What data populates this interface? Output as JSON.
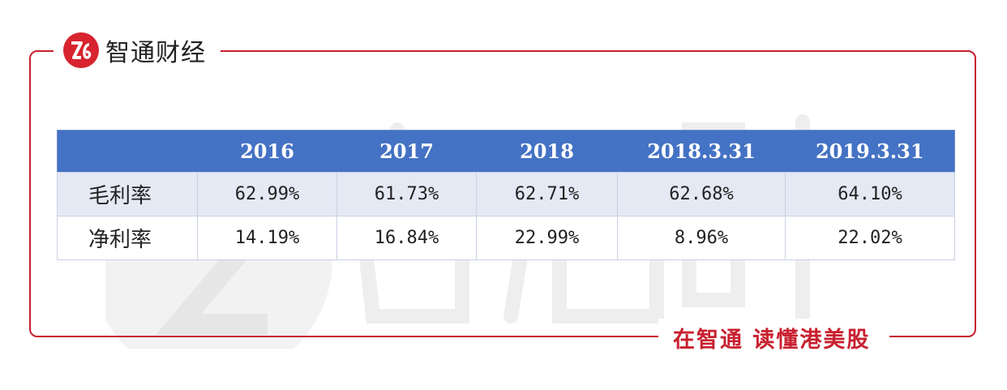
{
  "brand": {
    "logo_text": "智通财经",
    "slogan": "在智通  读懂港美股",
    "accent_color": "#c8202f",
    "icon": "zhitong-logo-icon"
  },
  "table": {
    "header_fill": "#4472c4",
    "columns": [
      "",
      "2016",
      "2017",
      "2018",
      "2018.3.31",
      "2019.3.31"
    ],
    "rows": [
      {
        "label": "毛利率",
        "values": [
          "62.99%",
          "61.73%",
          "62.71%",
          "62.68%",
          "64.10%"
        ]
      },
      {
        "label": "净利率",
        "values": [
          "14.19%",
          "16.84%",
          "22.99%",
          "8.96%",
          "22.02%"
        ]
      }
    ]
  }
}
